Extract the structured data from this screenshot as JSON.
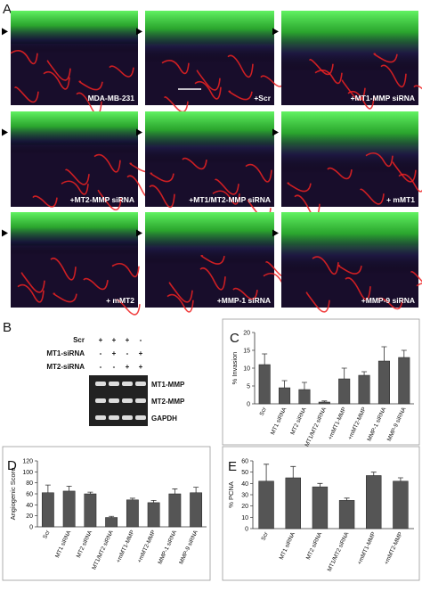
{
  "panel_a": {
    "label": "A",
    "captions": [
      "MDA-MB-231",
      "+Scr",
      "+MT1-MMP siRNA",
      "+MT2-MMP siRNA",
      "+MT1/MT2-MMP siRNA",
      "+ mMT1",
      "+ mMT2",
      "+MMP-1 siRNA",
      "+MMP-9 siRNA"
    ]
  },
  "panel_b": {
    "label": "B",
    "rows": [
      {
        "name": "Scr",
        "signs": [
          "+",
          "+",
          "+",
          "-"
        ]
      },
      {
        "name": "MT1-siRNA",
        "signs": [
          "-",
          "+",
          "-",
          "+"
        ]
      },
      {
        "name": "MT2-siRNA",
        "signs": [
          "-",
          "-",
          "+",
          "+"
        ]
      }
    ],
    "bands": [
      "MT1-MMP",
      "MT2-MMP",
      "GAPDH"
    ]
  },
  "chart_data": [
    {
      "type": "bar",
      "panel_label": "C",
      "ylabel": "% Invasion",
      "categories": [
        "Scr",
        "MT1 siRNA",
        "MT2 siRNA",
        "MT1/MT2 siRNA",
        "+mMT1-MMP",
        "+mMT2-MMP",
        "MMP-1 siRNA",
        "MMP-9 siRNA"
      ],
      "values": [
        11,
        4.5,
        4,
        0.5,
        7,
        8,
        12,
        13
      ],
      "errors": [
        3,
        2,
        2,
        0.3,
        3,
        1,
        4,
        2
      ],
      "color": "#555555",
      "ylim": [
        0,
        20
      ],
      "yticks": [
        0,
        5,
        10,
        15,
        20
      ]
    },
    {
      "type": "bar",
      "panel_label": "D",
      "ylabel": "Angiogenic Score",
      "categories": [
        "Scr",
        "MT1 siRNA",
        "MT2 siRNA",
        "MT1/MT2 siRNA",
        "+mMT1-MMP",
        "+mMT2-MMP",
        "MMP-1 siRNA",
        "MMP-9 siRNA"
      ],
      "values": [
        62,
        65,
        60,
        17,
        49,
        44,
        60,
        62
      ],
      "errors": [
        14,
        9,
        3,
        2,
        3,
        4,
        9,
        10
      ],
      "color": "#555555",
      "ylim": [
        0,
        120
      ],
      "yticks": [
        0,
        20,
        40,
        60,
        80,
        100,
        120
      ]
    },
    {
      "type": "bar",
      "panel_label": "E",
      "ylabel": "% PCNA",
      "categories": [
        "Scr",
        "MT1 siRNA",
        "MT2 siRNA",
        "MT1/MT2 siRNA",
        "+mMT1-MMP",
        "+mMT2-MMP"
      ],
      "values": [
        42,
        45,
        37,
        25,
        47,
        42
      ],
      "errors": [
        15,
        10,
        3,
        2,
        3,
        3
      ],
      "color": "#555555",
      "ylim": [
        0,
        60
      ],
      "yticks": [
        0,
        10,
        20,
        30,
        40,
        50,
        60
      ]
    }
  ]
}
